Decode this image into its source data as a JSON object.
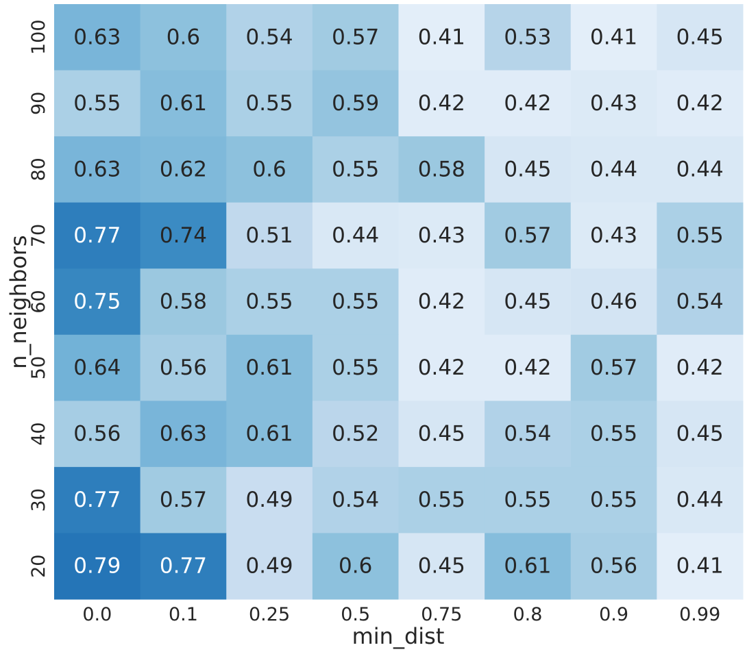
{
  "chart_data": {
    "type": "heatmap",
    "title": "",
    "xlabel": "min_dist",
    "ylabel": "n_neighbors",
    "x_categories": [
      "0.0",
      "0.1",
      "0.25",
      "0.5",
      "0.75",
      "0.8",
      "0.9",
      "0.99"
    ],
    "y_categories": [
      "100",
      "90",
      "80",
      "70",
      "60",
      "50",
      "40",
      "30",
      "20"
    ],
    "values": [
      [
        0.63,
        0.6,
        0.54,
        0.57,
        0.41,
        0.53,
        0.41,
        0.45
      ],
      [
        0.55,
        0.61,
        0.55,
        0.59,
        0.42,
        0.42,
        0.43,
        0.42
      ],
      [
        0.63,
        0.62,
        0.6,
        0.55,
        0.58,
        0.45,
        0.44,
        0.44
      ],
      [
        0.77,
        0.74,
        0.51,
        0.44,
        0.43,
        0.57,
        0.43,
        0.55
      ],
      [
        0.75,
        0.58,
        0.55,
        0.55,
        0.42,
        0.45,
        0.46,
        0.54
      ],
      [
        0.64,
        0.56,
        0.61,
        0.55,
        0.42,
        0.42,
        0.57,
        0.42
      ],
      [
        0.56,
        0.63,
        0.61,
        0.52,
        0.45,
        0.54,
        0.55,
        0.45
      ],
      [
        0.77,
        0.57,
        0.49,
        0.54,
        0.55,
        0.55,
        0.55,
        0.44
      ],
      [
        0.79,
        0.77,
        0.49,
        0.6,
        0.45,
        0.61,
        0.56,
        0.41
      ]
    ],
    "colormap": "Blues",
    "color_range": [
      0.35,
      0.95
    ],
    "dark_text_color": "#262626",
    "light_text_color": "#ffffff",
    "colorbar": false,
    "grid": false
  }
}
